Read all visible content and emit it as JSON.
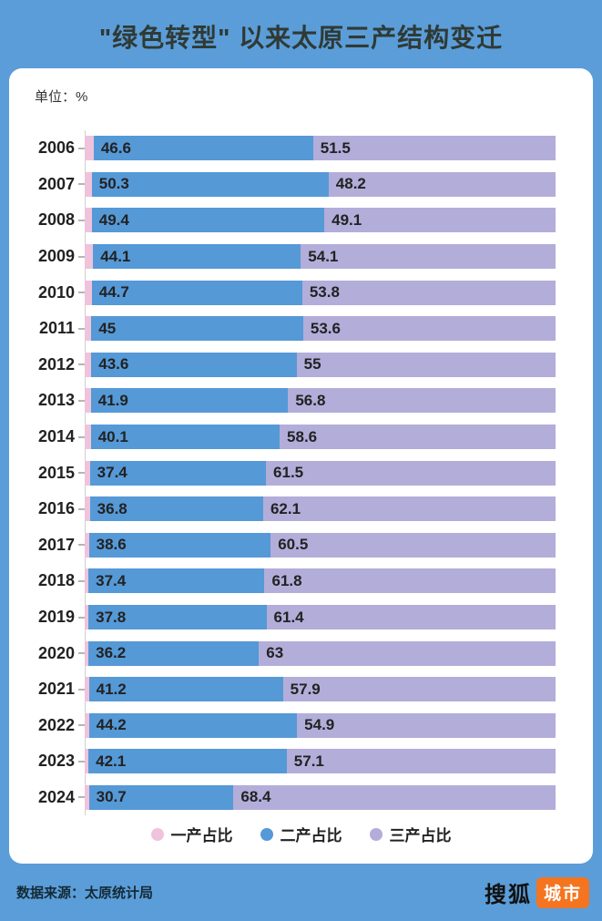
{
  "title": "\"绿色转型\" 以来太原三产结构变迁",
  "unit_label": "单位：%",
  "colors": {
    "background": "#5B9DD8",
    "card": "#FFFFFF",
    "primary_pink": "#EFC3DC",
    "secondary_blue": "#5599D7",
    "tertiary_purple": "#B3ADDA",
    "axis_line": "#CFCFCF",
    "label_text": "#222222",
    "badge_orange": "#F4741F"
  },
  "chart_data": {
    "type": "bar",
    "subtype": "horizontal-stacked-100pct",
    "title": "\"绿色转型\" 以来太原三产结构变迁",
    "unit": "%",
    "xlim": [
      0,
      100
    ],
    "grid": false,
    "legend_position": "bottom",
    "categories": [
      "2006",
      "2007",
      "2008",
      "2009",
      "2010",
      "2011",
      "2012",
      "2013",
      "2014",
      "2015",
      "2016",
      "2017",
      "2018",
      "2019",
      "2020",
      "2021",
      "2022",
      "2023",
      "2024"
    ],
    "series": [
      {
        "name": "一产占比",
        "color": "#EFC3DC",
        "values_estimated_from_bar_width": true,
        "values": [
          1.9,
          1.5,
          1.5,
          1.8,
          1.5,
          1.4,
          1.4,
          1.3,
          1.3,
          1.1,
          1.1,
          0.9,
          0.8,
          0.8,
          0.8,
          0.9,
          0.9,
          0.8,
          0.9
        ],
        "labels": null
      },
      {
        "name": "二产占比",
        "color": "#5599D7",
        "values": [
          46.6,
          50.3,
          49.4,
          44.1,
          44.7,
          45,
          43.6,
          41.9,
          40.1,
          37.4,
          36.8,
          38.6,
          37.4,
          37.8,
          36.2,
          41.2,
          44.2,
          42.1,
          30.7
        ],
        "labels": [
          "46.6",
          "50.3",
          "49.4",
          "44.1",
          "44.7",
          "45",
          "43.6",
          "41.9",
          "40.1",
          "37.4",
          "36.8",
          "38.6",
          "37.4",
          "37.8",
          "36.2",
          "41.2",
          "44.2",
          "42.1",
          "30.7"
        ]
      },
      {
        "name": "三产占比",
        "color": "#B3ADDA",
        "values": [
          51.5,
          48.2,
          49.1,
          54.1,
          53.8,
          53.6,
          55,
          56.8,
          58.6,
          61.5,
          62.1,
          60.5,
          61.8,
          61.4,
          63,
          57.9,
          54.9,
          57.1,
          68.4
        ],
        "labels": [
          "51.5",
          "48.2",
          "49.1",
          "54.1",
          "53.8",
          "53.6",
          "55",
          "56.8",
          "58.6",
          "61.5",
          "62.1",
          "60.5",
          "61.8",
          "61.4",
          "63",
          "57.9",
          "54.9",
          "57.1",
          "68.4"
        ]
      }
    ]
  },
  "legend": {
    "items": [
      {
        "label": "一产占比",
        "color": "#EFC3DC"
      },
      {
        "label": "二产占比",
        "color": "#5599D7"
      },
      {
        "label": "三产占比",
        "color": "#B3ADDA"
      }
    ]
  },
  "footer": {
    "source": "数据来源：太原统计局",
    "brand_name": "搜狐",
    "brand_badge": "城市"
  }
}
